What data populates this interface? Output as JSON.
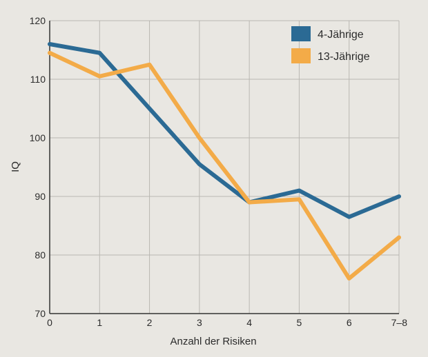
{
  "chart_data": {
    "type": "line",
    "title": "",
    "xlabel": "Anzahl der Risiken",
    "ylabel": "IQ",
    "categories": [
      "0",
      "1",
      "2",
      "3",
      "4",
      "5",
      "6",
      "7–8"
    ],
    "ylim": [
      70,
      120
    ],
    "yticks": [
      "70",
      "80",
      "90",
      "100",
      "110",
      "120"
    ],
    "grid": true,
    "legend_position": "top-right",
    "series": [
      {
        "name": "4-Jährige",
        "color": "#2b6a94",
        "values": [
          116,
          114.5,
          105,
          95.5,
          89,
          91,
          86.5,
          90
        ]
      },
      {
        "name": "13-Jährige",
        "color": "#f3ab48",
        "values": [
          114.5,
          110.5,
          112.5,
          100,
          89,
          89.5,
          76,
          83
        ]
      }
    ]
  }
}
